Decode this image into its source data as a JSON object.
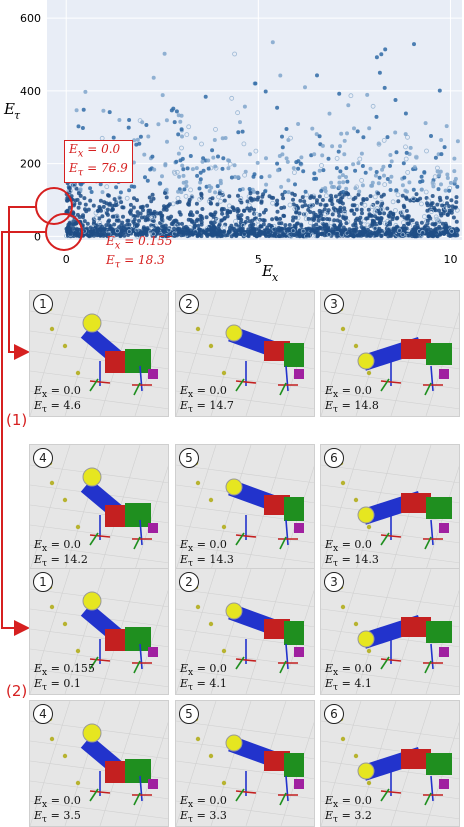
{
  "chart_data": {
    "type": "scatter",
    "xlabel": "E_x",
    "ylabel": "E_τ",
    "xlim": [
      -0.5,
      10.3
    ],
    "ylim": [
      -10,
      650
    ],
    "x_ticks": [
      0,
      5,
      10
    ],
    "y_ticks": [
      0,
      200,
      400,
      600
    ],
    "annotations": [
      {
        "Ex": "0.0",
        "Et": "76.9"
      },
      {
        "Ex": "0.155",
        "Et": "18.3"
      }
    ]
  },
  "groups": [
    {
      "label": "(1)",
      "panels": [
        {
          "n": "1",
          "Ex": "0.0",
          "Et": "4.6"
        },
        {
          "n": "2",
          "Ex": "0.0",
          "Et": "14.7"
        },
        {
          "n": "3",
          "Ex": "0.0",
          "Et": "14.8"
        },
        {
          "n": "4",
          "Ex": "0.0",
          "Et": "14.2"
        },
        {
          "n": "5",
          "Ex": "0.0",
          "Et": "14.3"
        },
        {
          "n": "6",
          "Ex": "0.0",
          "Et": "14.3"
        }
      ]
    },
    {
      "label": "(2)",
      "panels": [
        {
          "n": "1",
          "Ex": "0.155",
          "Et": "0.1"
        },
        {
          "n": "2",
          "Ex": "0.0",
          "Et": "4.1"
        },
        {
          "n": "3",
          "Ex": "0.0",
          "Et": "4.1"
        },
        {
          "n": "4",
          "Ex": "0.0",
          "Et": "3.5"
        },
        {
          "n": "5",
          "Ex": "0.0",
          "Et": "3.3"
        },
        {
          "n": "6",
          "Ex": "0.0",
          "Et": "3.2"
        }
      ]
    }
  ],
  "symbols": {
    "ex": "E",
    "ex_sub": "x",
    "et": "E",
    "et_sub": "τ",
    "eq": " = "
  },
  "colors": {
    "accent": "#d62020",
    "plot_bg": "#e8edf6",
    "dot_dark": "#1f4e86",
    "dot_light": "#9bb7d4"
  }
}
